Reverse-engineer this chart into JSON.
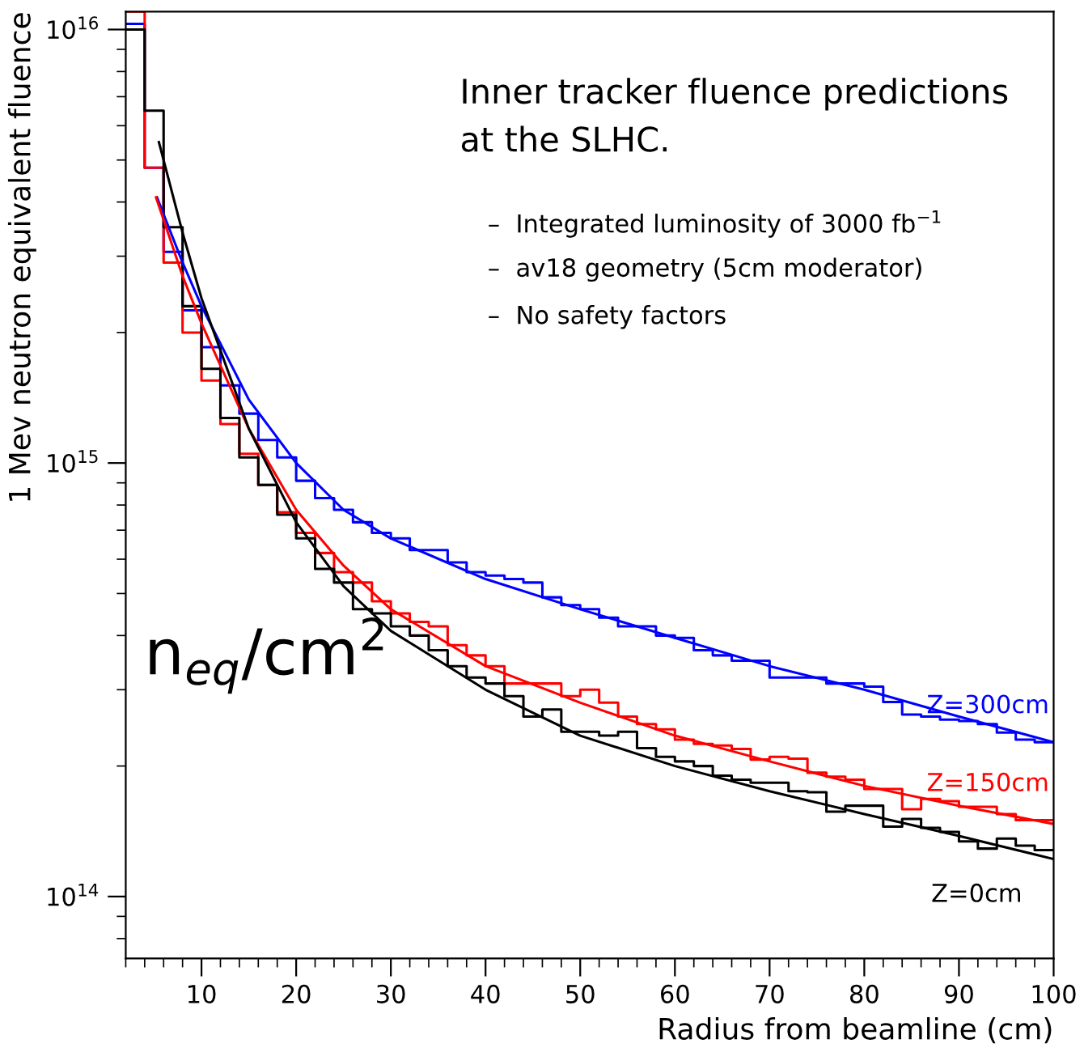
{
  "chart_data": {
    "type": "line",
    "xlabel": "Radius from beamline (cm)",
    "ylabel": "1 Mev neutron equivalent fluence",
    "annotations": [
      "Inner tracker fluence predictions\nat the SLHC.",
      "–  Integrated luminosity of 3000 fb$^{−1}$",
      "–  av18 geometry (5cm moderator)",
      "–  No safety factors",
      "n$_{eq}$/cm$^{2}$"
    ],
    "x": [
      2,
      4,
      6,
      8,
      10,
      12,
      14,
      16,
      18,
      20,
      22,
      24,
      26,
      28,
      30,
      32,
      34,
      36,
      38,
      40,
      42,
      44,
      46,
      48,
      50,
      52,
      54,
      56,
      58,
      60,
      62,
      64,
      66,
      68,
      70,
      72,
      74,
      76,
      78,
      80,
      82,
      84,
      86,
      88,
      90,
      92,
      94,
      96,
      98,
      100
    ],
    "series": [
      {
        "name": "Z=300cm",
        "type": "step",
        "color": "#0000ff",
        "values": [
          1.03e+16,
          4800000000000000.0,
          3070000000000000.0,
          2250000000000000.0,
          1850000000000000.0,
          1510000000000000.0,
          1300000000000000.0,
          1130000000000000.0,
          1030000000000000.0,
          910000000000000.0,
          830000000000000.0,
          780000000000000.0,
          730000000000000.0,
          690000000000000.0,
          670000000000000.0,
          630000000000000.0,
          630000000000000.0,
          590000000000000.0,
          560000000000000.0,
          550000000000000.0,
          540000000000000.0,
          530000000000000.0,
          490000000000000.0,
          470000000000000.0,
          460000000000000.0,
          440000000000000.0,
          420000000000000.0,
          420000000000000.0,
          400000000000000.0,
          395000000000000.0,
          370000000000000.0,
          360000000000000.0,
          350000000000000.0,
          350000000000000.0,
          320000000000000.0,
          320000000000000.0,
          320000000000000.0,
          310000000000000.0,
          310000000000000.0,
          305000000000000.0,
          281000000000000.0,
          263000000000000.0,
          260000000000000.0,
          256000000000000.0,
          254000000000000.0,
          250000000000000.0,
          239000000000000.0,
          230000000000000.0,
          227000000000000.0,
          227000000000000.0
        ]
      },
      {
        "name": "Z=150cm",
        "type": "step",
        "color": "#ff0000",
        "values": [
          1.1e+16,
          4800000000000000.0,
          2900000000000000.0,
          2000000000000000.0,
          1550000000000000.0,
          1230000000000000.0,
          1050000000000000.0,
          890000000000000.0,
          770000000000000.0,
          690000000000000.0,
          620000000000000.0,
          560000000000000.0,
          530000000000000.0,
          480000000000000.0,
          450000000000000.0,
          430000000000000.0,
          420000000000000.0,
          380000000000000.0,
          360000000000000.0,
          340000000000000.0,
          310000000000000.0,
          310000000000000.0,
          310000000000000.0,
          290000000000000.0,
          300000000000000.0,
          280000000000000.0,
          260000000000000.0,
          250000000000000.0,
          243000000000000.0,
          230000000000000.0,
          225000000000000.0,
          223000000000000.0,
          219000000000000.0,
          207000000000000.0,
          210000000000000.0,
          208000000000000.0,
          193000000000000.0,
          189000000000000.0,
          186000000000000.0,
          177000000000000.0,
          177000000000000.0,
          159000000000000.0,
          168000000000000.0,
          166000000000000.0,
          161000000000000.0,
          161000000000000.0,
          155000000000000.0,
          150000000000000.0,
          150000000000000.0,
          150000000000000.0
        ]
      },
      {
        "name": "Z=0cm",
        "type": "step",
        "color": "#000000",
        "values": [
          1e+16,
          6500000000000000.0,
          3500000000000000.0,
          2300000000000000.0,
          1650000000000000.0,
          1270000000000000.0,
          1030000000000000.0,
          890000000000000.0,
          760000000000000.0,
          670000000000000.0,
          570000000000000.0,
          530000000000000.0,
          460000000000000.0,
          450000000000000.0,
          420000000000000.0,
          400000000000000.0,
          370000000000000.0,
          340000000000000.0,
          320000000000000.0,
          310000000000000.0,
          290000000000000.0,
          260000000000000.0,
          270000000000000.0,
          240000000000000.0,
          240000000000000.0,
          235000000000000.0,
          240000000000000.0,
          220000000000000.0,
          210000000000000.0,
          205000000000000.0,
          200000000000000.0,
          190000000000000.0,
          186000000000000.0,
          183000000000000.0,
          183000000000000.0,
          175000000000000.0,
          174000000000000.0,
          157000000000000.0,
          162000000000000.0,
          162000000000000.0,
          145000000000000.0,
          151000000000000.0,
          144000000000000.0,
          141000000000000.0,
          134000000000000.0,
          129000000000000.0,
          136000000000000.0,
          131000000000000.0,
          128000000000000.0,
          128000000000000.0
        ]
      },
      {
        "color": "#0000ff",
        "x": [
          5.3,
          8,
          10,
          15,
          20,
          25,
          30,
          40,
          50,
          60,
          70,
          80,
          90,
          100
        ],
        "values": [
          4100000000000000.0,
          2900000000000000.0,
          2300000000000000.0,
          1400000000000000.0,
          1000000000000000.0,
          780000000000000.0,
          670000000000000.0,
          540000000000000.0,
          460000000000000.0,
          395000000000000.0,
          340000000000000.0,
          300000000000000.0,
          260000000000000.0,
          227000000000000.0
        ]
      },
      {
        "color": "#ff0000",
        "x": [
          5.2,
          8,
          10,
          15,
          20,
          25,
          30,
          40,
          50,
          60,
          70,
          80,
          90,
          100
        ],
        "values": [
          4100000000000000.0,
          2700000000000000.0,
          2100000000000000.0,
          1200000000000000.0,
          780000000000000.0,
          580000000000000.0,
          460000000000000.0,
          340000000000000.0,
          280000000000000.0,
          235000000000000.0,
          205000000000000.0,
          180000000000000.0,
          162000000000000.0,
          147000000000000.0
        ]
      },
      {
        "color": "#000000",
        "x": [
          5.5,
          8,
          10,
          15,
          20,
          25,
          30,
          40,
          50,
          60,
          70,
          80,
          90,
          100
        ],
        "values": [
          5500000000000000.0,
          3400000000000000.0,
          2400000000000000.0,
          1200000000000000.0,
          730000000000000.0,
          520000000000000.0,
          410000000000000.0,
          300000000000000.0,
          235000000000000.0,
          200000000000000.0,
          175000000000000.0,
          155000000000000.0,
          138000000000000.0,
          122000000000000.0
        ]
      }
    ],
    "log": "y",
    "xlim": [
      2,
      100
    ],
    "ylim": [
      72000000000000.0,
      1.1e+16
    ],
    "xticks": [
      10,
      20,
      30,
      40,
      50,
      60,
      70,
      80,
      90,
      100
    ],
    "yticks": [
      {
        "value": 100000000000000.0,
        "label": "10$^{14}$"
      },
      {
        "value": 1000000000000000.0,
        "label": "10$^{15}$"
      },
      {
        "value": 1e+16,
        "label": "10$^{16}$"
      }
    ],
    "grid": false,
    "legend": false
  }
}
